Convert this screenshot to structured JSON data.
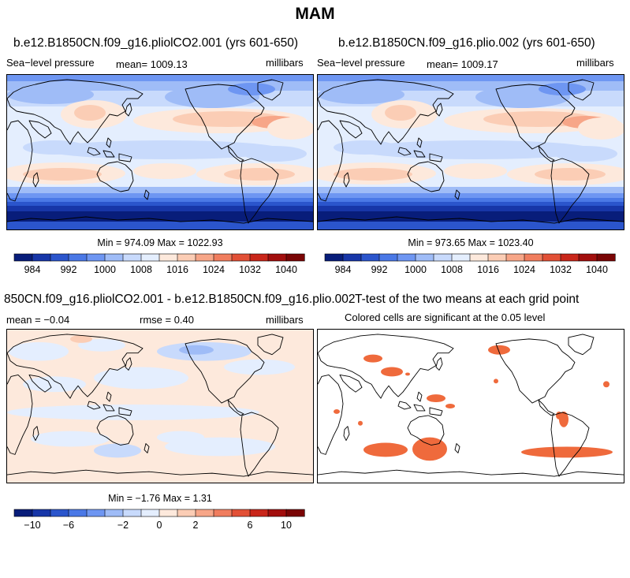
{
  "title": "MAM",
  "panels": [
    {
      "id": "left",
      "case_title": "b.e12.B1850CN.f09_g16.pliolCO2.001 (yrs 601-650)",
      "variable": "Sea−level pressure",
      "mean_label": "mean=  1009.13",
      "units": "millibars",
      "stats": "Min = 974.09 Max = 1022.93"
    },
    {
      "id": "right",
      "case_title": "b.e12.B1850CN.f09_g16.plio.002 (yrs 601-650)",
      "variable": "Sea−level pressure",
      "mean_label": "mean=  1009.17",
      "units": "millibars",
      "stats": "Min = 973.65 Max = 1023.40"
    },
    {
      "id": "diff",
      "case_title": "850CN.f09_g16.pliolCO2.001 - b.e12.B1850CN.f09_g16.plio.002",
      "mean_label": "mean =   −0.04",
      "rmse_label": "rmse =    0.40",
      "units": "millibars",
      "stats": "Min =  −1.76 Max =   1.31"
    },
    {
      "id": "ttest",
      "case_title": "T-test of the two means at each grid point",
      "subtitle": "Colored cells are significant at the 0.05 level"
    }
  ],
  "chart_data": [
    {
      "type": "heatmap",
      "name": "slp_pliolCO2",
      "colorbar": {
        "tick_labels": [
          "984",
          "992",
          "1000",
          "1008",
          "1016",
          "1024",
          "1032",
          "1040"
        ],
        "colors": [
          "#081d7a",
          "#1736a8",
          "#2b55cc",
          "#4a78e6",
          "#6e96f2",
          "#9fbcf7",
          "#c8dafc",
          "#e4eefe",
          "#fde9dc",
          "#fbcdb5",
          "#f7a688",
          "#f07d5e",
          "#e25036",
          "#c9261a",
          "#a20e0d",
          "#7a0505"
        ]
      }
    },
    {
      "type": "heatmap",
      "name": "slp_plio",
      "colorbar": {
        "tick_labels": [
          "984",
          "992",
          "1000",
          "1008",
          "1016",
          "1024",
          "1032",
          "1040"
        ],
        "colors": [
          "#081d7a",
          "#1736a8",
          "#2b55cc",
          "#4a78e6",
          "#6e96f2",
          "#9fbcf7",
          "#c8dafc",
          "#e4eefe",
          "#fde9dc",
          "#fbcdb5",
          "#f7a688",
          "#f07d5e",
          "#e25036",
          "#c9261a",
          "#a20e0d",
          "#7a0505"
        ]
      }
    },
    {
      "type": "heatmap",
      "name": "slp_difference",
      "colorbar": {
        "tick_labels": [
          "−10",
          "−6",
          "−2",
          "0",
          "2",
          "6",
          "10"
        ],
        "colors": [
          "#081d7a",
          "#1736a8",
          "#2b55cc",
          "#4a78e6",
          "#6e96f2",
          "#9fbcf7",
          "#c8dafc",
          "#e4eefe",
          "#fde9dc",
          "#fbcdb5",
          "#f7a688",
          "#f07d5e",
          "#e25036",
          "#c9261a",
          "#a20e0d",
          "#7a0505"
        ]
      }
    },
    {
      "type": "heatmap",
      "name": "significance_mask",
      "colors": {
        "significant": "#ef6a3c"
      }
    }
  ]
}
